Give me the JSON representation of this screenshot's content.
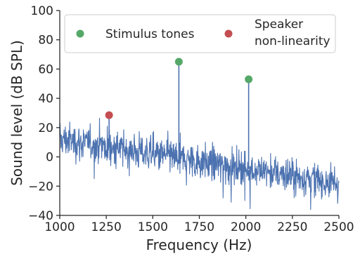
{
  "chart_data": {
    "type": "line",
    "xlabel": "Frequency (Hz)",
    "ylabel": "Sound level (dB SPL)",
    "xlim": [
      1000,
      2500
    ],
    "ylim": [
      -40,
      100
    ],
    "xticks": [
      1000,
      1250,
      1500,
      1750,
      2000,
      2250,
      2500
    ],
    "yticks": [
      -40,
      -20,
      0,
      20,
      40,
      60,
      80,
      100
    ],
    "xtick_labels": [
      "1000",
      "1250",
      "1500",
      "1750",
      "2000",
      "2250",
      "2500"
    ],
    "ytick_labels": [
      "−40",
      "−20",
      "0",
      "20",
      "40",
      "60",
      "80",
      "100"
    ],
    "noise_trend": {
      "x": [
        1000,
        2500
      ],
      "y": [
        12,
        -18
      ],
      "spread_db": 6,
      "points": 900
    },
    "series": [
      {
        "name": "Stimulus tones",
        "color": "#55a868",
        "marker": "circle",
        "points": [
          {
            "x": 1640,
            "y": 65
          },
          {
            "x": 2015,
            "y": 53
          }
        ]
      },
      {
        "name": "Speaker non-linearity",
        "color": "#c44e52",
        "marker": "circle",
        "points": [
          {
            "x": 1265,
            "y": 28.5
          }
        ]
      }
    ],
    "spectrum_color": "#4c72b0",
    "legend": {
      "placement": "top",
      "entries": [
        {
          "label": "Stimulus tones",
          "color": "#55a868"
        },
        {
          "label_lines": [
            "Speaker",
            "non-linearity"
          ],
          "color": "#c44e52"
        }
      ]
    },
    "grid": false
  }
}
